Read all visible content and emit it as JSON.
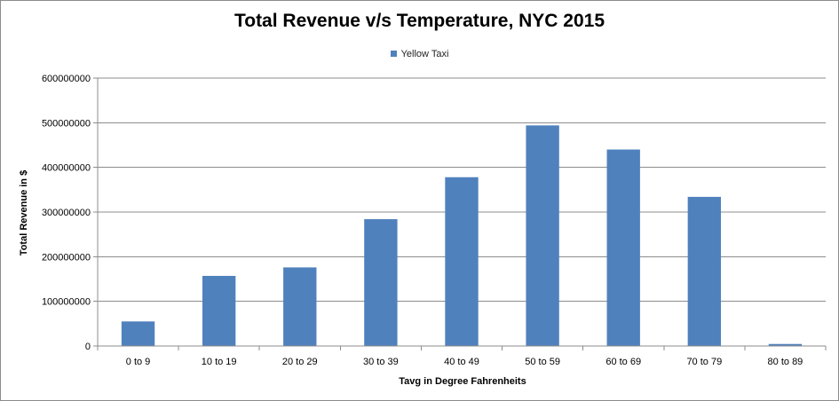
{
  "chart_data": {
    "type": "bar",
    "title": "Total Revenue v/s Temperature, NYC 2015",
    "xlabel": "Tavg  in Degree Fahrenheits",
    "ylabel": "Total Revenue  in $",
    "legend": {
      "position": "top",
      "label": "Yellow Taxi"
    },
    "categories": [
      "0 to 9",
      "10 to 19",
      "20 to 29",
      "30 to 39",
      "40 to 49",
      "50 to 59",
      "60 to 69",
      "70 to 79",
      "80 to 89"
    ],
    "series": [
      {
        "name": "Yellow Taxi",
        "color": "#4f81bd",
        "values": [
          55000000,
          157000000,
          176000000,
          284000000,
          378000000,
          494000000,
          440000000,
          334000000,
          4500000
        ]
      }
    ],
    "ylim": [
      0,
      600000000
    ],
    "yticks": [
      "0",
      "100000000",
      "200000000",
      "300000000",
      "400000000",
      "500000000",
      "600000000"
    ],
    "grid": true
  }
}
